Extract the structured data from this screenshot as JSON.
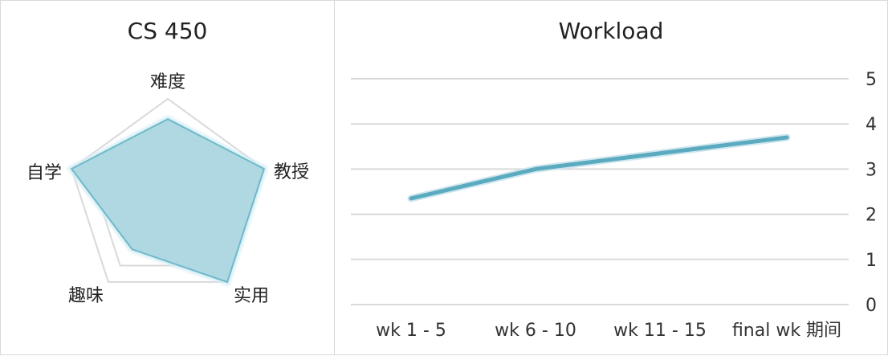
{
  "chart_data": [
    {
      "type": "radar",
      "title": "CS 450",
      "categories": [
        "难度",
        "教授",
        "实用",
        "趣味",
        "自学"
      ],
      "values": [
        4,
        5,
        5,
        3,
        5
      ],
      "range": [
        0,
        5
      ],
      "grid_levels": [
        1,
        2,
        3,
        4,
        5
      ],
      "grid": true,
      "colors": {
        "fill": "#8ec7d4",
        "stroke": "#6fb9cb",
        "grid": "#d9d9d9"
      }
    },
    {
      "type": "line",
      "title": "Workload",
      "categories": [
        "wk 1 - 5",
        "wk 6 - 10",
        "wk 11 - 15",
        "final wk 期间"
      ],
      "values": [
        2.35,
        3.0,
        3.35,
        3.7
      ],
      "y_ticks": [
        0,
        1,
        2,
        3,
        4,
        5
      ],
      "ylim": [
        0,
        5
      ],
      "grid": true,
      "colors": {
        "line": "#5aaac0",
        "glow": "#cfe6ee",
        "grid": "#d9d9d9"
      }
    }
  ]
}
